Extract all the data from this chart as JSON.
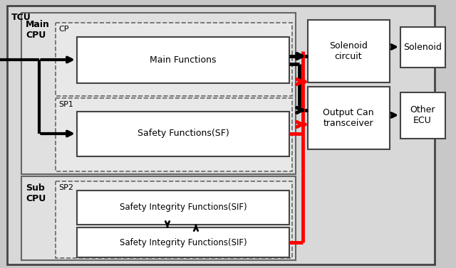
{
  "fig_width": 6.4,
  "fig_height": 3.77,
  "bg_outer": "#c8c8c8",
  "bg_tcu": "#d8d8d8",
  "bg_cpu": "#e0e0e0",
  "bg_white": "#ffffff",
  "bg_dashed": "#e8e8e8",
  "red": "#ff0000",
  "black": "#000000",
  "gray_border": "#666666",
  "dark_border": "#444444",
  "labels": {
    "tcu": "TCU",
    "main_cpu": "Main\nCPU",
    "sub_cpu": "Sub\nCPU",
    "cp": "CP",
    "sp1": "SP1",
    "sp2": "SP2",
    "main_func": "Main Functions",
    "safety_func": "Safety Functions(SF)",
    "sif_upper": "Safety Integrity Functions(SIF)",
    "sif_lower": "Safety Integrity Functions(SIF)",
    "solenoid_ckt": "Solenoid\ncircuit",
    "output_can": "Output Can\ntransceiver",
    "solenoid": "Solenoid",
    "other_ecu": "Other\nECU"
  }
}
